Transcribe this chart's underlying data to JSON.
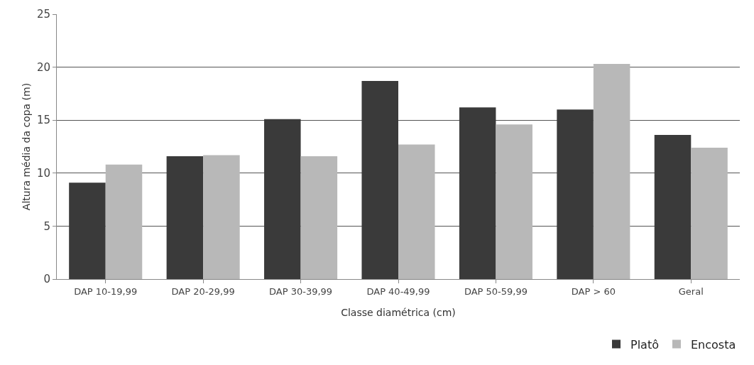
{
  "chart_data": {
    "type": "bar",
    "xlabel": "Classe diamétrica (cm)",
    "ylabel": "Altura média da copa (m)",
    "categories": [
      "DAP 10-19,99",
      "DAP 20-29,99",
      "DAP 30-39,99",
      "DAP 40-49,99",
      "DAP 50-59,99",
      "DAP > 60",
      "Geral"
    ],
    "series": [
      {
        "name": "Platô",
        "color": "#3a3a3a",
        "values": [
          9.1,
          11.6,
          15.1,
          18.7,
          16.2,
          16.0,
          13.6
        ]
      },
      {
        "name": "Encosta",
        "color": "#b8b8b8",
        "values": [
          10.8,
          11.7,
          11.6,
          12.7,
          14.6,
          20.3,
          12.4
        ]
      }
    ],
    "ylim": [
      0,
      25
    ],
    "yticks": [
      0,
      5,
      10,
      15,
      20,
      25
    ],
    "grid": "y",
    "legend": "bottom right"
  }
}
